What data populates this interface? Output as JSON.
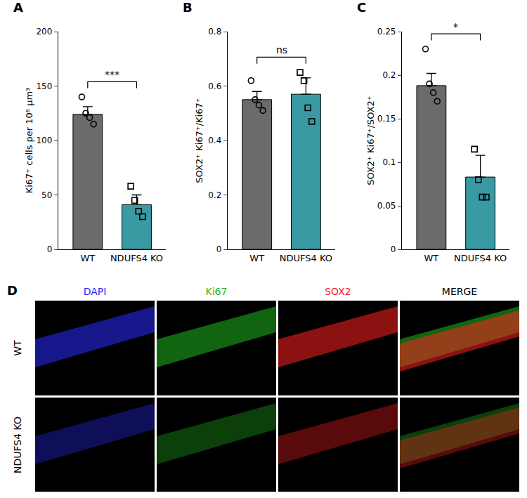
{
  "chart_data": [
    {
      "letter": "A",
      "type": "bar",
      "categories": [
        "WT",
        "NDUFS4 KO"
      ],
      "values": [
        124,
        41
      ],
      "error": [
        7,
        9
      ],
      "points": [
        [
          140,
          125,
          121,
          115
        ],
        [
          58,
          45,
          35,
          30
        ]
      ],
      "colors": [
        "#6b6b6b",
        "#3a9aa3"
      ],
      "markers": [
        "circle-open",
        "square-open"
      ],
      "ylabel": "Ki67⁺ cells per 10⁶ μm³",
      "ylim": [
        0,
        200
      ],
      "yticks": [
        0,
        50,
        100,
        150,
        200
      ],
      "significance": "***"
    },
    {
      "letter": "B",
      "type": "bar",
      "categories": [
        "WT",
        "NDUFS4 KO"
      ],
      "values": [
        0.55,
        0.57
      ],
      "error": [
        0.03,
        0.06
      ],
      "points": [
        [
          0.62,
          0.55,
          0.53,
          0.51
        ],
        [
          0.65,
          0.62,
          0.52,
          0.47
        ]
      ],
      "colors": [
        "#6b6b6b",
        "#3a9aa3"
      ],
      "markers": [
        "circle-open",
        "square-open"
      ],
      "ylabel": "SOX2⁺ Ki67⁺/Ki67⁺",
      "ylim": [
        0,
        0.8
      ],
      "yticks": [
        0,
        0.2,
        0.4,
        0.6,
        0.8
      ],
      "significance": "ns"
    },
    {
      "letter": "C",
      "type": "bar",
      "categories": [
        "WT",
        "NDUFS4 KO"
      ],
      "values": [
        0.188,
        0.083
      ],
      "error": [
        0.014,
        0.025
      ],
      "points": [
        [
          0.23,
          0.19,
          0.18,
          0.17
        ],
        [
          0.115,
          0.08,
          0.06,
          0.06
        ]
      ],
      "colors": [
        "#6b6b6b",
        "#3a9aa3"
      ],
      "markers": [
        "circle-open",
        "square-open"
      ],
      "ylabel": "SOX2⁺ Ki67⁺/SOX2⁺",
      "ylim": [
        0,
        0.25
      ],
      "yticks": [
        0,
        0.05,
        0.1,
        0.15,
        0.2,
        0.25
      ],
      "significance": "*"
    }
  ],
  "image_panel": {
    "letter": "D",
    "columns": [
      "DAPI",
      "Ki67",
      "SOX2",
      "MERGE"
    ],
    "header_colors": [
      "#2a2aff",
      "#1fb81f",
      "#ff2020",
      "#000000"
    ],
    "rows": [
      "WT",
      "NDUFS4 KO"
    ]
  }
}
